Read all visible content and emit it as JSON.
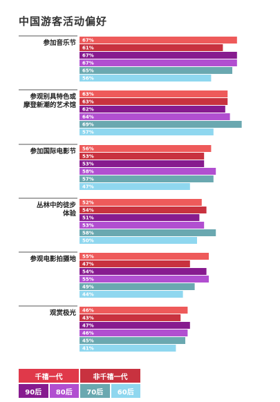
{
  "title": "中国游客活动偏好",
  "legend": {
    "groups": [
      {
        "label": "千禧一代",
        "color": "#e0394a"
      },
      {
        "label": "非千禧一代",
        "color": "#c8323f"
      }
    ],
    "series": [
      {
        "label": "90后",
        "color": "#871b8f"
      },
      {
        "label": "80后",
        "color": "#b14fd0"
      },
      {
        "label": "70后",
        "color": "#6aa8b0"
      },
      {
        "label": "60后",
        "color": "#8fd7ef"
      }
    ]
  },
  "chart_data": {
    "type": "bar",
    "orientation": "horizontal",
    "title": "中国游客活动偏好",
    "value_format": "percent",
    "categories": [
      "参加音乐节",
      "参观别具特色或摩登新潮的艺术馆",
      "参加国际电影节",
      "丛林中的徒步体验",
      "参观电影拍摄地",
      "观赏极光"
    ],
    "category_lines": [
      [
        "参加音乐节"
      ],
      [
        "参观别具特色或",
        "摩登新潮的艺术馆"
      ],
      [
        "参加国际电影节"
      ],
      [
        "丛林中的徒步",
        "体验"
      ],
      [
        "参观电影拍摄地"
      ],
      [
        "观赏极光"
      ]
    ],
    "series": [
      {
        "color": "#ee5a5a",
        "values": [
          67,
          63,
          56,
          52,
          55,
          46
        ]
      },
      {
        "color": "#c8323f",
        "values": [
          61,
          63,
          53,
          54,
          47,
          43
        ]
      },
      {
        "color": "#871b8f",
        "values": [
          67,
          62,
          53,
          51,
          54,
          47
        ]
      },
      {
        "color": "#b14fd0",
        "values": [
          67,
          64,
          58,
          53,
          55,
          46
        ]
      },
      {
        "color": "#6aa8b0",
        "values": [
          65,
          69,
          57,
          58,
          49,
          45
        ]
      },
      {
        "color": "#8fd7ef",
        "values": [
          56,
          57,
          47,
          50,
          44,
          41
        ]
      }
    ]
  }
}
